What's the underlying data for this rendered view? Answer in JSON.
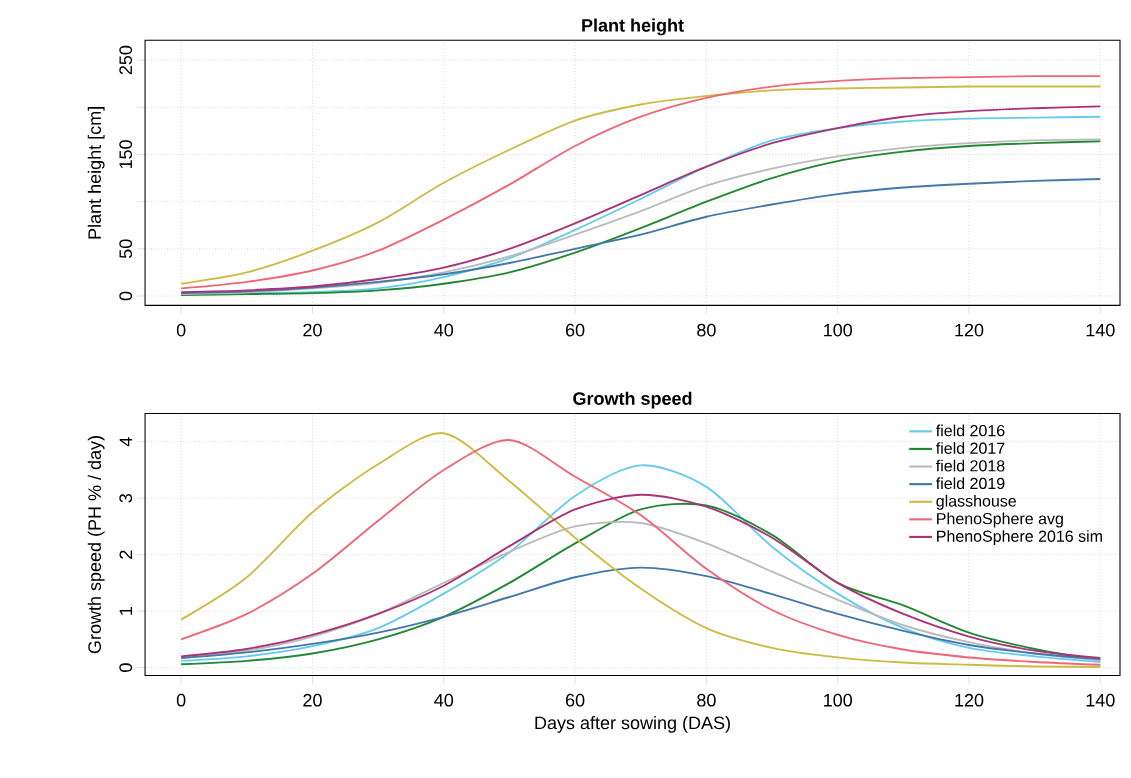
{
  "chart_data": [
    {
      "type": "line",
      "title": "Plant height",
      "ylabel": "Plant height [cm]",
      "x": [
        0,
        10,
        20,
        30,
        40,
        50,
        60,
        70,
        80,
        90,
        100,
        110,
        120,
        130,
        140
      ],
      "xlim": [
        -5.5,
        143
      ],
      "ylim": [
        -10,
        271
      ],
      "xticks": [
        0,
        20,
        40,
        60,
        80,
        100,
        120,
        140
      ],
      "yticks": [
        0,
        50,
        {
          "value": 100,
          "label": null
        },
        150,
        {
          "value": 200,
          "label": null
        },
        250
      ],
      "grid": true,
      "series": [
        {
          "color": "#66ccee",
          "values": [
            2,
            3,
            4,
            8,
            20,
            40,
            70,
            103,
            137,
            165,
            178,
            185,
            188,
            189,
            190
          ]
        },
        {
          "color": "#228833",
          "values": [
            1,
            2,
            3,
            6,
            13,
            25,
            46,
            72,
            100,
            125,
            143,
            153,
            159,
            162,
            164
          ]
        },
        {
          "color": "#bbbbbb",
          "values": [
            2,
            4,
            8,
            14,
            25,
            42,
            65,
            90,
            117,
            135,
            148,
            157,
            162,
            165,
            166
          ]
        },
        {
          "color": "#4477aa",
          "values": [
            3,
            5,
            9,
            15,
            23,
            35,
            50,
            65,
            84,
            97,
            108,
            115,
            119,
            122,
            124
          ]
        },
        {
          "color": "#ccbb44",
          "values": [
            13,
            25,
            48,
            78,
            120,
            155,
            186,
            203,
            212,
            218,
            220,
            221,
            222,
            222,
            222
          ]
        },
        {
          "color": "#ee6677",
          "values": [
            8,
            15,
            27,
            48,
            81,
            118,
            159,
            190,
            210,
            222,
            228,
            231,
            232,
            233,
            233
          ]
        },
        {
          "color": "#aa3377",
          "values": [
            4,
            6,
            10,
            18,
            30,
            50,
            77,
            107,
            137,
            162,
            178,
            190,
            196,
            199,
            201
          ]
        }
      ]
    },
    {
      "type": "line",
      "title": "Growth speed",
      "xlabel": "Days after sowing (DAS)",
      "ylabel": "Growth speed (PH % / day)",
      "x": [
        0,
        10,
        20,
        30,
        40,
        50,
        60,
        70,
        80,
        90,
        100,
        110,
        120,
        130,
        140
      ],
      "xlim": [
        -5.5,
        143
      ],
      "ylim": [
        -0.14,
        4.5
      ],
      "xticks": [
        0,
        20,
        40,
        60,
        80,
        100,
        120,
        140
      ],
      "yticks": [
        0,
        1,
        2,
        3,
        4
      ],
      "grid": true,
      "legend": "top right",
      "series": [
        {
          "name": "field 2016",
          "color": "#66ccee",
          "values": [
            0.12,
            0.2,
            0.38,
            0.7,
            1.31,
            2.04,
            3.04,
            3.58,
            3.2,
            2.14,
            1.31,
            0.7,
            0.35,
            0.2,
            0.1
          ]
        },
        {
          "name": "field 2017",
          "color": "#228833",
          "values": [
            0.06,
            0.12,
            0.25,
            0.5,
            0.9,
            1.5,
            2.2,
            2.8,
            2.87,
            2.35,
            1.5,
            1.1,
            0.62,
            0.33,
            0.13
          ]
        },
        {
          "name": "field 2018",
          "color": "#bbbbbb",
          "values": [
            0.17,
            0.3,
            0.55,
            0.95,
            1.5,
            2.05,
            2.5,
            2.56,
            2.2,
            1.7,
            1.2,
            0.75,
            0.45,
            0.25,
            0.13
          ]
        },
        {
          "name": "field 2019",
          "color": "#4477aa",
          "values": [
            0.17,
            0.27,
            0.42,
            0.62,
            0.9,
            1.25,
            1.6,
            1.77,
            1.62,
            1.3,
            0.95,
            0.65,
            0.4,
            0.25,
            0.15
          ]
        },
        {
          "name": "glasshouse",
          "color": "#ccbb44",
          "values": [
            0.85,
            1.6,
            2.75,
            3.6,
            4.15,
            3.3,
            2.3,
            1.4,
            0.7,
            0.35,
            0.18,
            0.09,
            0.05,
            0.02,
            0.01
          ]
        },
        {
          "name": "PhenoSphere avg",
          "color": "#ee6677",
          "values": [
            0.5,
            0.95,
            1.66,
            2.6,
            3.5,
            4.03,
            3.38,
            2.7,
            1.75,
            1.02,
            0.58,
            0.32,
            0.18,
            0.1,
            0.05
          ]
        },
        {
          "name": "PhenoSphere 2016 sim",
          "color": "#aa3377",
          "values": [
            0.2,
            0.33,
            0.58,
            0.95,
            1.45,
            2.15,
            2.8,
            3.06,
            2.85,
            2.3,
            1.5,
            0.95,
            0.55,
            0.3,
            0.17
          ]
        }
      ]
    }
  ]
}
